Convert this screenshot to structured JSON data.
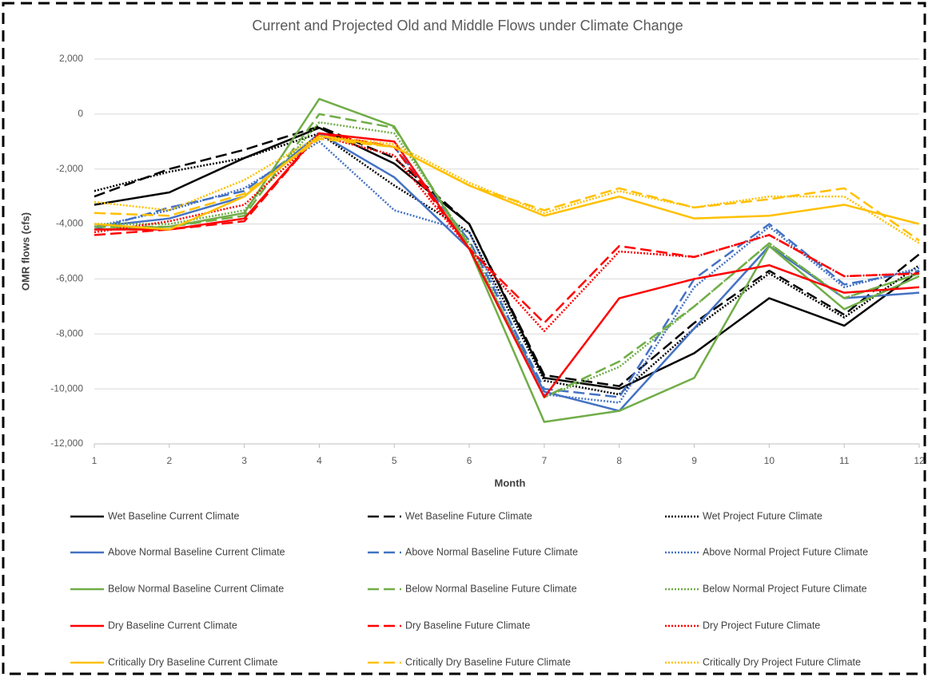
{
  "chart_data": {
    "type": "line",
    "title": "Current and Projected Old and Middle Flows under Climate Change",
    "xlabel": "Month",
    "ylabel": "OMR flows (cfs)",
    "x": [
      1,
      2,
      3,
      4,
      5,
      6,
      7,
      8,
      9,
      10,
      11,
      12
    ],
    "xlim": [
      1,
      12
    ],
    "xticks": [
      1,
      2,
      3,
      4,
      5,
      6,
      7,
      8,
      9,
      10,
      11,
      12
    ],
    "ylim": [
      -12000,
      2000
    ],
    "yticks": [
      {
        "value": -12000,
        "label": "-12,000"
      },
      {
        "value": -10000,
        "label": "-10,000"
      },
      {
        "value": -8000,
        "label": "-8,000"
      },
      {
        "value": -6000,
        "label": "-6,000"
      },
      {
        "value": -4000,
        "label": "-4,000"
      },
      {
        "value": -2000,
        "label": "-2,000"
      },
      0,
      {
        "value": 2000,
        "label": "2,000"
      }
    ],
    "grid": true,
    "legend": "bottom",
    "series": [
      {
        "name": "Wet Baseline Current Climate",
        "color": "#000000",
        "dash": "solid",
        "values": [
          -3300,
          -2850,
          -1600,
          -500,
          -1800,
          -4000,
          -9600,
          -10000,
          -8700,
          -6700,
          -7700,
          -5700
        ]
      },
      {
        "name": "Wet Baseline Future Climate",
        "color": "#000000",
        "dash": "dashed",
        "values": [
          -3000,
          -2000,
          -1300,
          -450,
          -1600,
          -4000,
          -9500,
          -9900,
          -7600,
          -5700,
          -7300,
          -5100
        ]
      },
      {
        "name": "Wet Project Future Climate",
        "color": "#000000",
        "dash": "dotted",
        "values": [
          -2800,
          -2100,
          -1600,
          -700,
          -2600,
          -4300,
          -9700,
          -10200,
          -7800,
          -5800,
          -7400,
          -5500
        ]
      },
      {
        "name": "Above Normal Baseline Current Climate",
        "color": "#4472c4",
        "dash": "solid",
        "values": [
          -4100,
          -3800,
          -3000,
          -700,
          -2300,
          -4900,
          -10100,
          -10800,
          -7800,
          -4800,
          -6700,
          -6500
        ]
      },
      {
        "name": "Above Normal Baseline Future Climate",
        "color": "#4472c4",
        "dash": "dashed",
        "values": [
          -4200,
          -3400,
          -2800,
          -800,
          -1200,
          -4600,
          -10000,
          -10300,
          -6000,
          -4000,
          -6200,
          -5700
        ]
      },
      {
        "name": "Above Normal Project Future Climate",
        "color": "#4472c4",
        "dash": "dotted",
        "values": [
          -4100,
          -3500,
          -2700,
          -1000,
          -3500,
          -4300,
          -10200,
          -10500,
          -6300,
          -4100,
          -6300,
          -5600
        ]
      },
      {
        "name": "Below Normal Baseline Current Climate",
        "color": "#70ad47",
        "dash": "solid",
        "values": [
          -4200,
          -4100,
          -3600,
          550,
          -450,
          -4900,
          -11200,
          -10800,
          -9600,
          -4800,
          -7100,
          -5900
        ]
      },
      {
        "name": "Below Normal Baseline Future Climate",
        "color": "#70ad47",
        "dash": "dashed",
        "values": [
          -4100,
          -4100,
          -3700,
          0,
          -500,
          -4800,
          -10300,
          -9000,
          -7000,
          -4700,
          -6700,
          -5800
        ]
      },
      {
        "name": "Below Normal Project Future Climate",
        "color": "#70ad47",
        "dash": "dotted",
        "values": [
          -4000,
          -4000,
          -3500,
          -300,
          -700,
          -4700,
          -10300,
          -9200,
          -7000,
          -4700,
          -6700,
          -5800
        ]
      },
      {
        "name": "Dry Baseline Current Climate",
        "color": "#ff0000",
        "dash": "solid",
        "values": [
          -4200,
          -4200,
          -3800,
          -700,
          -1000,
          -4900,
          -10300,
          -6700,
          -6000,
          -5500,
          -6500,
          -6300
        ]
      },
      {
        "name": "Dry Baseline Future Climate",
        "color": "#ff0000",
        "dash": "dashed",
        "values": [
          -4400,
          -4200,
          -3900,
          -700,
          -1200,
          -4900,
          -7600,
          -4800,
          -5200,
          -4400,
          -5900,
          -5800
        ]
      },
      {
        "name": "Dry Project Future Climate",
        "color": "#ff0000",
        "dash": "dotted",
        "values": [
          -4300,
          -3900,
          -3300,
          -800,
          -1500,
          -4900,
          -7900,
          -5000,
          -5200,
          -4400,
          -5900,
          -5800
        ]
      },
      {
        "name": "Critically Dry Baseline Current Climate",
        "color": "#ffc000",
        "dash": "solid",
        "values": [
          -4000,
          -4200,
          -3000,
          -800,
          -1200,
          -2600,
          -3700,
          -3000,
          -3800,
          -3700,
          -3300,
          -4000
        ]
      },
      {
        "name": "Critically Dry Baseline Future Climate",
        "color": "#ffc000",
        "dash": "dashed",
        "values": [
          -3600,
          -3700,
          -2900,
          -900,
          -1200,
          -2600,
          -3500,
          -2700,
          -3400,
          -3100,
          -2700,
          -4600
        ]
      },
      {
        "name": "Critically Dry Project Future Climate",
        "color": "#ffc000",
        "dash": "dotted",
        "values": [
          -3200,
          -3500,
          -2400,
          -800,
          -1100,
          -2500,
          -3600,
          -2800,
          -3400,
          -3000,
          -3000,
          -4700
        ]
      }
    ]
  }
}
